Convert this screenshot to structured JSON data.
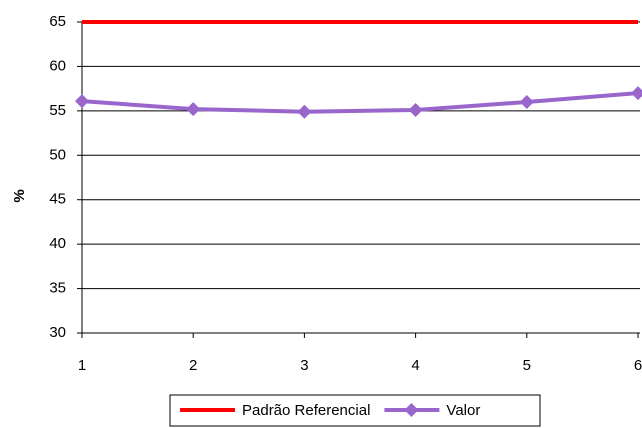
{
  "chart_data": {
    "type": "line",
    "x": [
      1,
      2,
      3,
      4,
      5,
      6
    ],
    "series": [
      {
        "name": "Padrão Referencial",
        "color": "#ff0000",
        "values": [
          65,
          65,
          65,
          65,
          65,
          65
        ],
        "marker": "none"
      },
      {
        "name": "Valor",
        "color": "#9966cc",
        "values": [
          56.1,
          55.2,
          54.9,
          55.1,
          56.0,
          57.0
        ],
        "marker": "diamond"
      }
    ],
    "ylabel": "%",
    "xlim": [
      1,
      6
    ],
    "xticks": [
      1,
      2,
      3,
      4,
      5,
      6
    ],
    "ylim": [
      30,
      65
    ],
    "yticks": [
      30,
      35,
      40,
      45,
      50,
      55,
      60,
      65
    ],
    "grid": true,
    "legend": "bottom"
  }
}
